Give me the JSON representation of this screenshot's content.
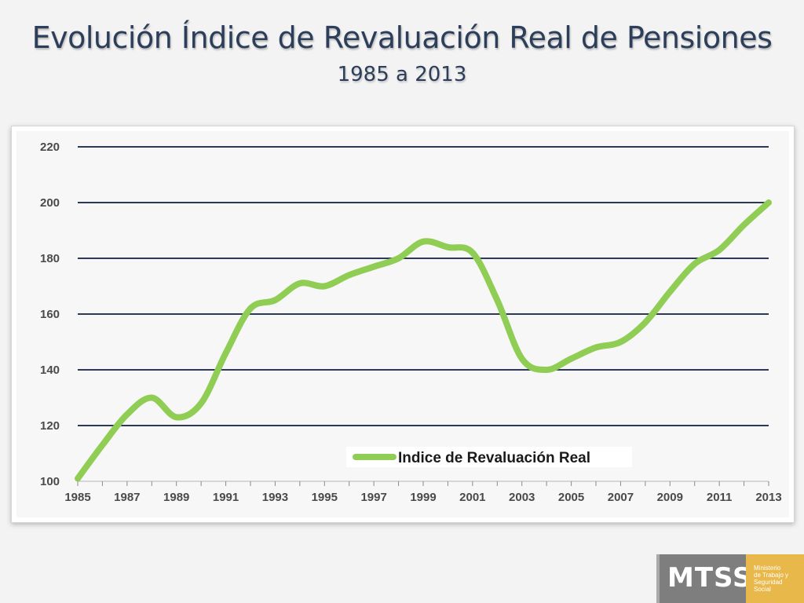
{
  "slide": {
    "title": "Evolución Índice de Revaluación Real de Pensiones",
    "subtitle": "1985 a 2013"
  },
  "logo": {
    "acronym": "MTSS",
    "lines": [
      "Ministerio",
      "de Trabajo y",
      "Seguridad",
      "Social"
    ],
    "colors": {
      "gray": "#7e7e7e",
      "gold": "#e9b84a"
    }
  },
  "chart_data": {
    "type": "line",
    "title": "",
    "xlabel": "",
    "ylabel": "",
    "x_tick_labels": [
      "1985",
      "1987",
      "1989",
      "1991",
      "1993",
      "1995",
      "1997",
      "1999",
      "2001",
      "2003",
      "2005",
      "2007",
      "2009",
      "2011",
      "2013"
    ],
    "y_ticks": [
      100,
      120,
      140,
      160,
      180,
      200,
      220
    ],
    "xlim": [
      1985,
      2013
    ],
    "ylim": [
      100,
      220
    ],
    "grid": "horizontal",
    "legend_position": "bottom-center",
    "series": [
      {
        "name": "Indice de Revaluación Real",
        "color": "#8fcd55",
        "x": [
          1985,
          1986,
          1987,
          1988,
          1989,
          1990,
          1991,
          1992,
          1993,
          1994,
          1995,
          1996,
          1997,
          1998,
          1999,
          2000,
          2001,
          2002,
          2003,
          2004,
          2005,
          2006,
          2007,
          2008,
          2009,
          2010,
          2011,
          2012,
          2013
        ],
        "values": [
          101,
          113,
          124,
          130,
          123,
          128,
          146,
          162,
          165,
          171,
          170,
          174,
          177,
          180,
          186,
          184,
          182,
          165,
          144,
          140,
          144,
          148,
          150,
          157,
          168,
          178,
          183,
          192,
          200
        ]
      }
    ],
    "colors": {
      "gridline": "#2c3a58",
      "axis_text": "#4a4a4a"
    }
  }
}
